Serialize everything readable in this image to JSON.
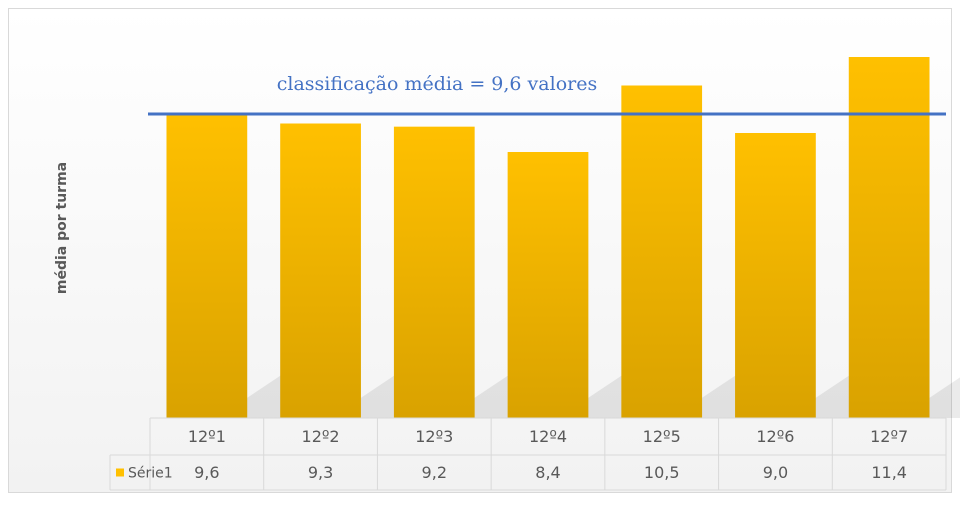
{
  "chart_data": {
    "type": "bar",
    "ylabel": "média por turma",
    "categories": [
      "12º1",
      "12º2",
      "12º3",
      "12º4",
      "12º5",
      "12º6",
      "12º7"
    ],
    "series": [
      {
        "name": "Série1",
        "color": "#ffc000",
        "values": [
          9.6,
          9.3,
          9.2,
          8.4,
          10.5,
          9.0,
          11.4
        ],
        "value_labels": [
          "9,6",
          "9,3",
          "9,2",
          "8,4",
          "10,5",
          "9,0",
          "11,4"
        ]
      }
    ],
    "ylim": [
      0,
      12
    ],
    "data_table": true,
    "reference_line": {
      "value": 9.6,
      "label": "classificação média = 9,6 valores",
      "color": "#4472c4"
    }
  }
}
